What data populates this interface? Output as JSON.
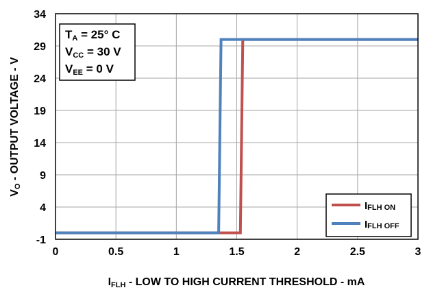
{
  "chart_data": {
    "type": "line",
    "xlabel": {
      "main": "I",
      "sub": "FLH",
      "rest": " - LOW TO HIGH CURRENT THRESHOLD - mA"
    },
    "ylabel": {
      "main": "V",
      "sub": "O",
      "rest": " - OUTPUT VOLTAGE - V"
    },
    "xlim": [
      0,
      3
    ],
    "ylim": [
      -1,
      34
    ],
    "xticks": [
      0,
      0.5,
      1,
      1.5,
      2,
      2.5,
      3
    ],
    "xtick_labels": [
      "0",
      "0.5",
      "1",
      "1.5",
      "2",
      "2.5",
      "3"
    ],
    "yticks": [
      -1,
      4,
      9,
      14,
      19,
      24,
      29,
      34
    ],
    "ytick_labels": [
      "-1",
      "4",
      "9",
      "14",
      "19",
      "24",
      "29",
      "34"
    ],
    "grid": true,
    "legend_position": "bottom-right",
    "conditions": [
      {
        "main": "T",
        "sub": "A",
        "rest": " = 25° C"
      },
      {
        "main": "V",
        "sub": "CC",
        "rest": " = 30 V"
      },
      {
        "main": "V",
        "sub": "EE",
        "rest": " = 0 V"
      }
    ],
    "series": [
      {
        "name": {
          "main": "I",
          "sub": "FLH ON"
        },
        "color": "#c0504d",
        "x": [
          0,
          1.53,
          1.55,
          3
        ],
        "y": [
          0,
          0,
          30,
          30
        ]
      },
      {
        "name": {
          "main": "I",
          "sub": "FLH OFF"
        },
        "color": "#4f81bd",
        "x": [
          0,
          1.35,
          1.37,
          3
        ],
        "y": [
          0,
          0,
          30,
          30
        ]
      }
    ]
  }
}
